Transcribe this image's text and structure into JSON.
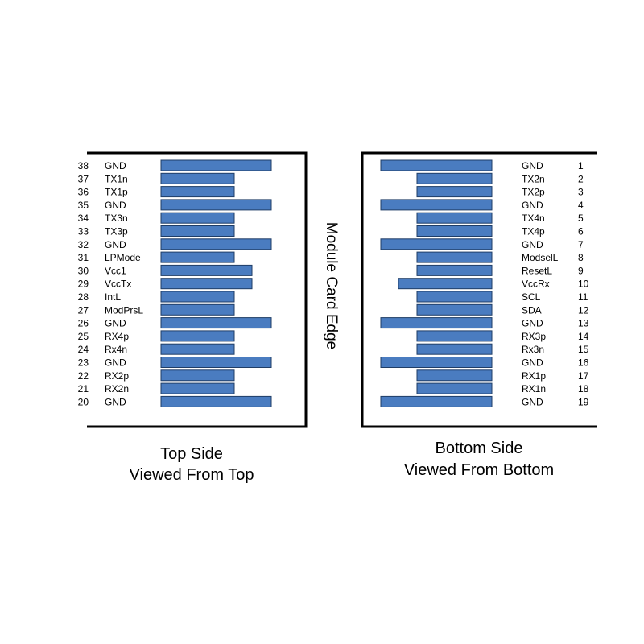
{
  "edge_label": "Module Card Edge",
  "top_side": {
    "caption_line1": "Top Side",
    "caption_line2": "Viewed From Top",
    "pins": [
      {
        "num": "38",
        "name": "GND",
        "pad": "long"
      },
      {
        "num": "37",
        "name": "TX1n",
        "pad": "short"
      },
      {
        "num": "36",
        "name": "TX1p",
        "pad": "short"
      },
      {
        "num": "35",
        "name": "GND",
        "pad": "long"
      },
      {
        "num": "34",
        "name": "TX3n",
        "pad": "short"
      },
      {
        "num": "33",
        "name": "TX3p",
        "pad": "short"
      },
      {
        "num": "32",
        "name": "GND",
        "pad": "long"
      },
      {
        "num": "31",
        "name": "LPMode",
        "pad": "short"
      },
      {
        "num": "30",
        "name": "Vcc1",
        "pad": "medium"
      },
      {
        "num": "29",
        "name": "VccTx",
        "pad": "medium"
      },
      {
        "num": "28",
        "name": "IntL",
        "pad": "short"
      },
      {
        "num": "27",
        "name": "ModPrsL",
        "pad": "short"
      },
      {
        "num": "26",
        "name": "GND",
        "pad": "long"
      },
      {
        "num": "25",
        "name": "RX4p",
        "pad": "short"
      },
      {
        "num": "24",
        "name": "Rx4n",
        "pad": "short"
      },
      {
        "num": "23",
        "name": "GND",
        "pad": "long"
      },
      {
        "num": "22",
        "name": "RX2p",
        "pad": "short"
      },
      {
        "num": "21",
        "name": "RX2n",
        "pad": "short"
      },
      {
        "num": "20",
        "name": "GND",
        "pad": "long"
      }
    ]
  },
  "bottom_side": {
    "caption_line1": "Bottom Side",
    "caption_line2": "Viewed From Bottom",
    "pins": [
      {
        "num": "1",
        "name": "GND",
        "pad": "long"
      },
      {
        "num": "2",
        "name": "TX2n",
        "pad": "short"
      },
      {
        "num": "3",
        "name": "TX2p",
        "pad": "short"
      },
      {
        "num": "4",
        "name": "GND",
        "pad": "long"
      },
      {
        "num": "5",
        "name": "TX4n",
        "pad": "short"
      },
      {
        "num": "6",
        "name": "TX4p",
        "pad": "short"
      },
      {
        "num": "7",
        "name": "GND",
        "pad": "long"
      },
      {
        "num": "8",
        "name": "ModselL",
        "pad": "short"
      },
      {
        "num": "9",
        "name": "ResetL",
        "pad": "short"
      },
      {
        "num": "10",
        "name": "VccRx",
        "pad": "medium"
      },
      {
        "num": "11",
        "name": "SCL",
        "pad": "short"
      },
      {
        "num": "12",
        "name": "SDA",
        "pad": "short"
      },
      {
        "num": "13",
        "name": "GND",
        "pad": "long"
      },
      {
        "num": "14",
        "name": "RX3p",
        "pad": "short"
      },
      {
        "num": "15",
        "name": "Rx3n",
        "pad": "short"
      },
      {
        "num": "16",
        "name": "GND",
        "pad": "long"
      },
      {
        "num": "17",
        "name": "RX1p",
        "pad": "short"
      },
      {
        "num": "18",
        "name": "RX1n",
        "pad": "short"
      },
      {
        "num": "19",
        "name": "GND",
        "pad": "long"
      }
    ]
  },
  "colors": {
    "pad_fill": "#4a7cc0",
    "pad_stroke": "#1f3d66",
    "frame": "#000000"
  }
}
